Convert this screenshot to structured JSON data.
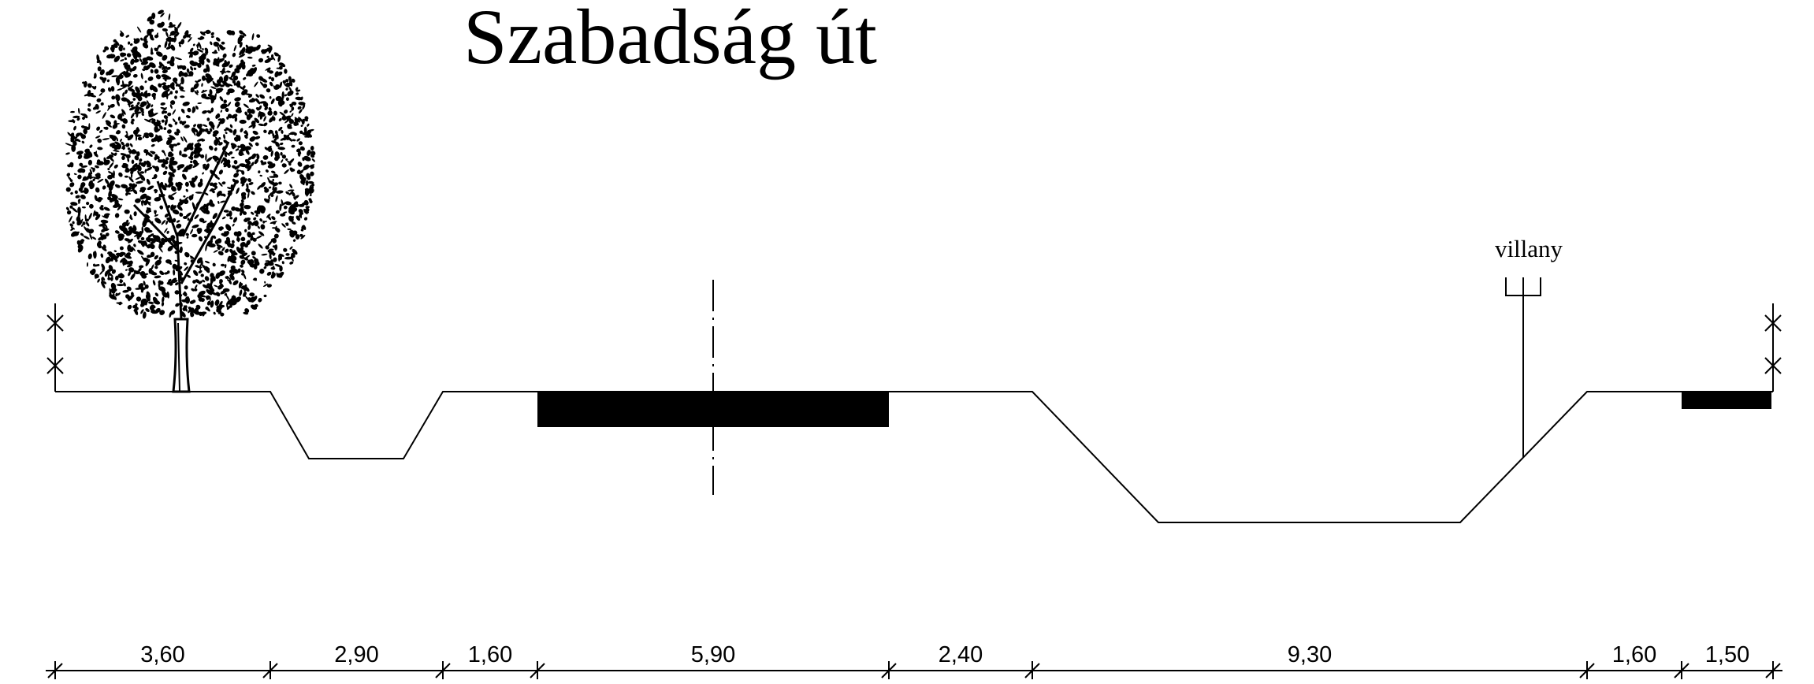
{
  "title": "Szabadság út",
  "labels": {
    "utility": "villany"
  },
  "dimensions": [
    "3,60",
    "2,90",
    "1,60",
    "5,90",
    "2,40",
    "9,30",
    "1,60",
    "1,50"
  ],
  "icons": {
    "tree": "tree-icon",
    "pole": "utility-pole-icon"
  },
  "colors": {
    "ink": "#000000",
    "paper": "#ffffff"
  }
}
